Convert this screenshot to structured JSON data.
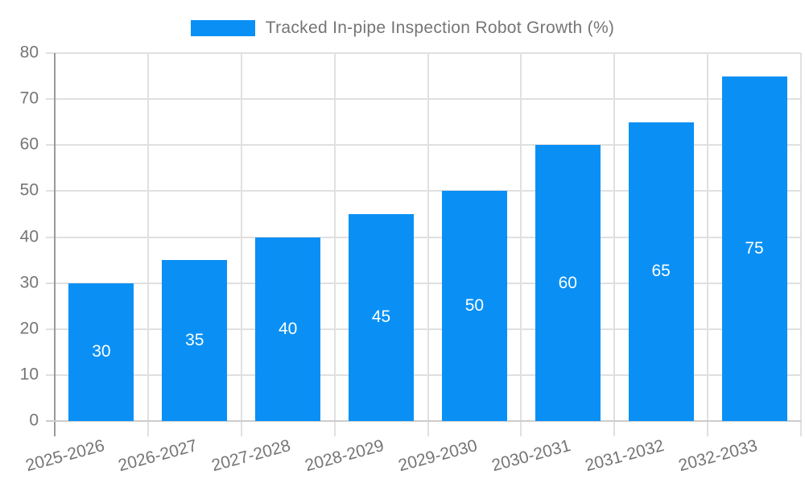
{
  "chart_data": {
    "type": "bar",
    "title": "Tracked In-pipe Inspection Robot Growth (%)",
    "categories": [
      "2025-2026",
      "2026-2027",
      "2027-2028",
      "2028-2029",
      "2029-2030",
      "2030-2031",
      "2031-2032",
      "2032-2033"
    ],
    "values": [
      30,
      35,
      40,
      45,
      50,
      60,
      65,
      75
    ],
    "bar_value_labels": [
      "30",
      "35",
      "40",
      "45",
      "50",
      "60",
      "65",
      "75"
    ],
    "xlabel": "",
    "ylabel": "",
    "ylim": [
      0,
      80
    ],
    "yticks": [
      0,
      10,
      20,
      30,
      40,
      50,
      60,
      70,
      80
    ],
    "grid": true,
    "legend_position": "top-center",
    "x_label_rotation_deg": -15,
    "colors": {
      "bar": "#0a90f5",
      "bar_label_text": "#ffffff",
      "axis_text": "#757575",
      "gridline": "#e0e0e0",
      "y_axis_line": "#999999",
      "x_axis_line": "#cccccc"
    }
  },
  "legend": {
    "label": "Tracked In-pipe Inspection Robot Growth (%)"
  }
}
